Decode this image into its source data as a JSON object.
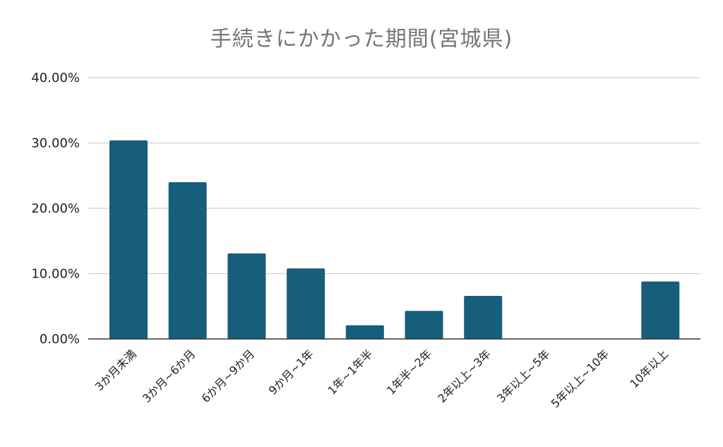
{
  "chart_data": {
    "type": "bar",
    "title": "手続きにかかった期間(宮城県)",
    "categories": [
      "3か月未満",
      "3か月~6か月",
      "6か月~9か月",
      "9か月~1年",
      "1年~1年半",
      "1年半~2年",
      "2年以上~3年",
      "3年以上~5年",
      "5年以上~10年",
      "10年以上"
    ],
    "values": [
      30.4,
      24.0,
      13.1,
      10.8,
      2.1,
      4.3,
      6.6,
      0,
      0,
      8.8
    ],
    "unit": "%",
    "yticks": [
      "0.00%",
      "10.00%",
      "20.00%",
      "30.00%",
      "40.00%"
    ],
    "ylim": [
      0,
      40
    ],
    "grid": true,
    "legend": "none",
    "bar_color": "#175e7d"
  }
}
